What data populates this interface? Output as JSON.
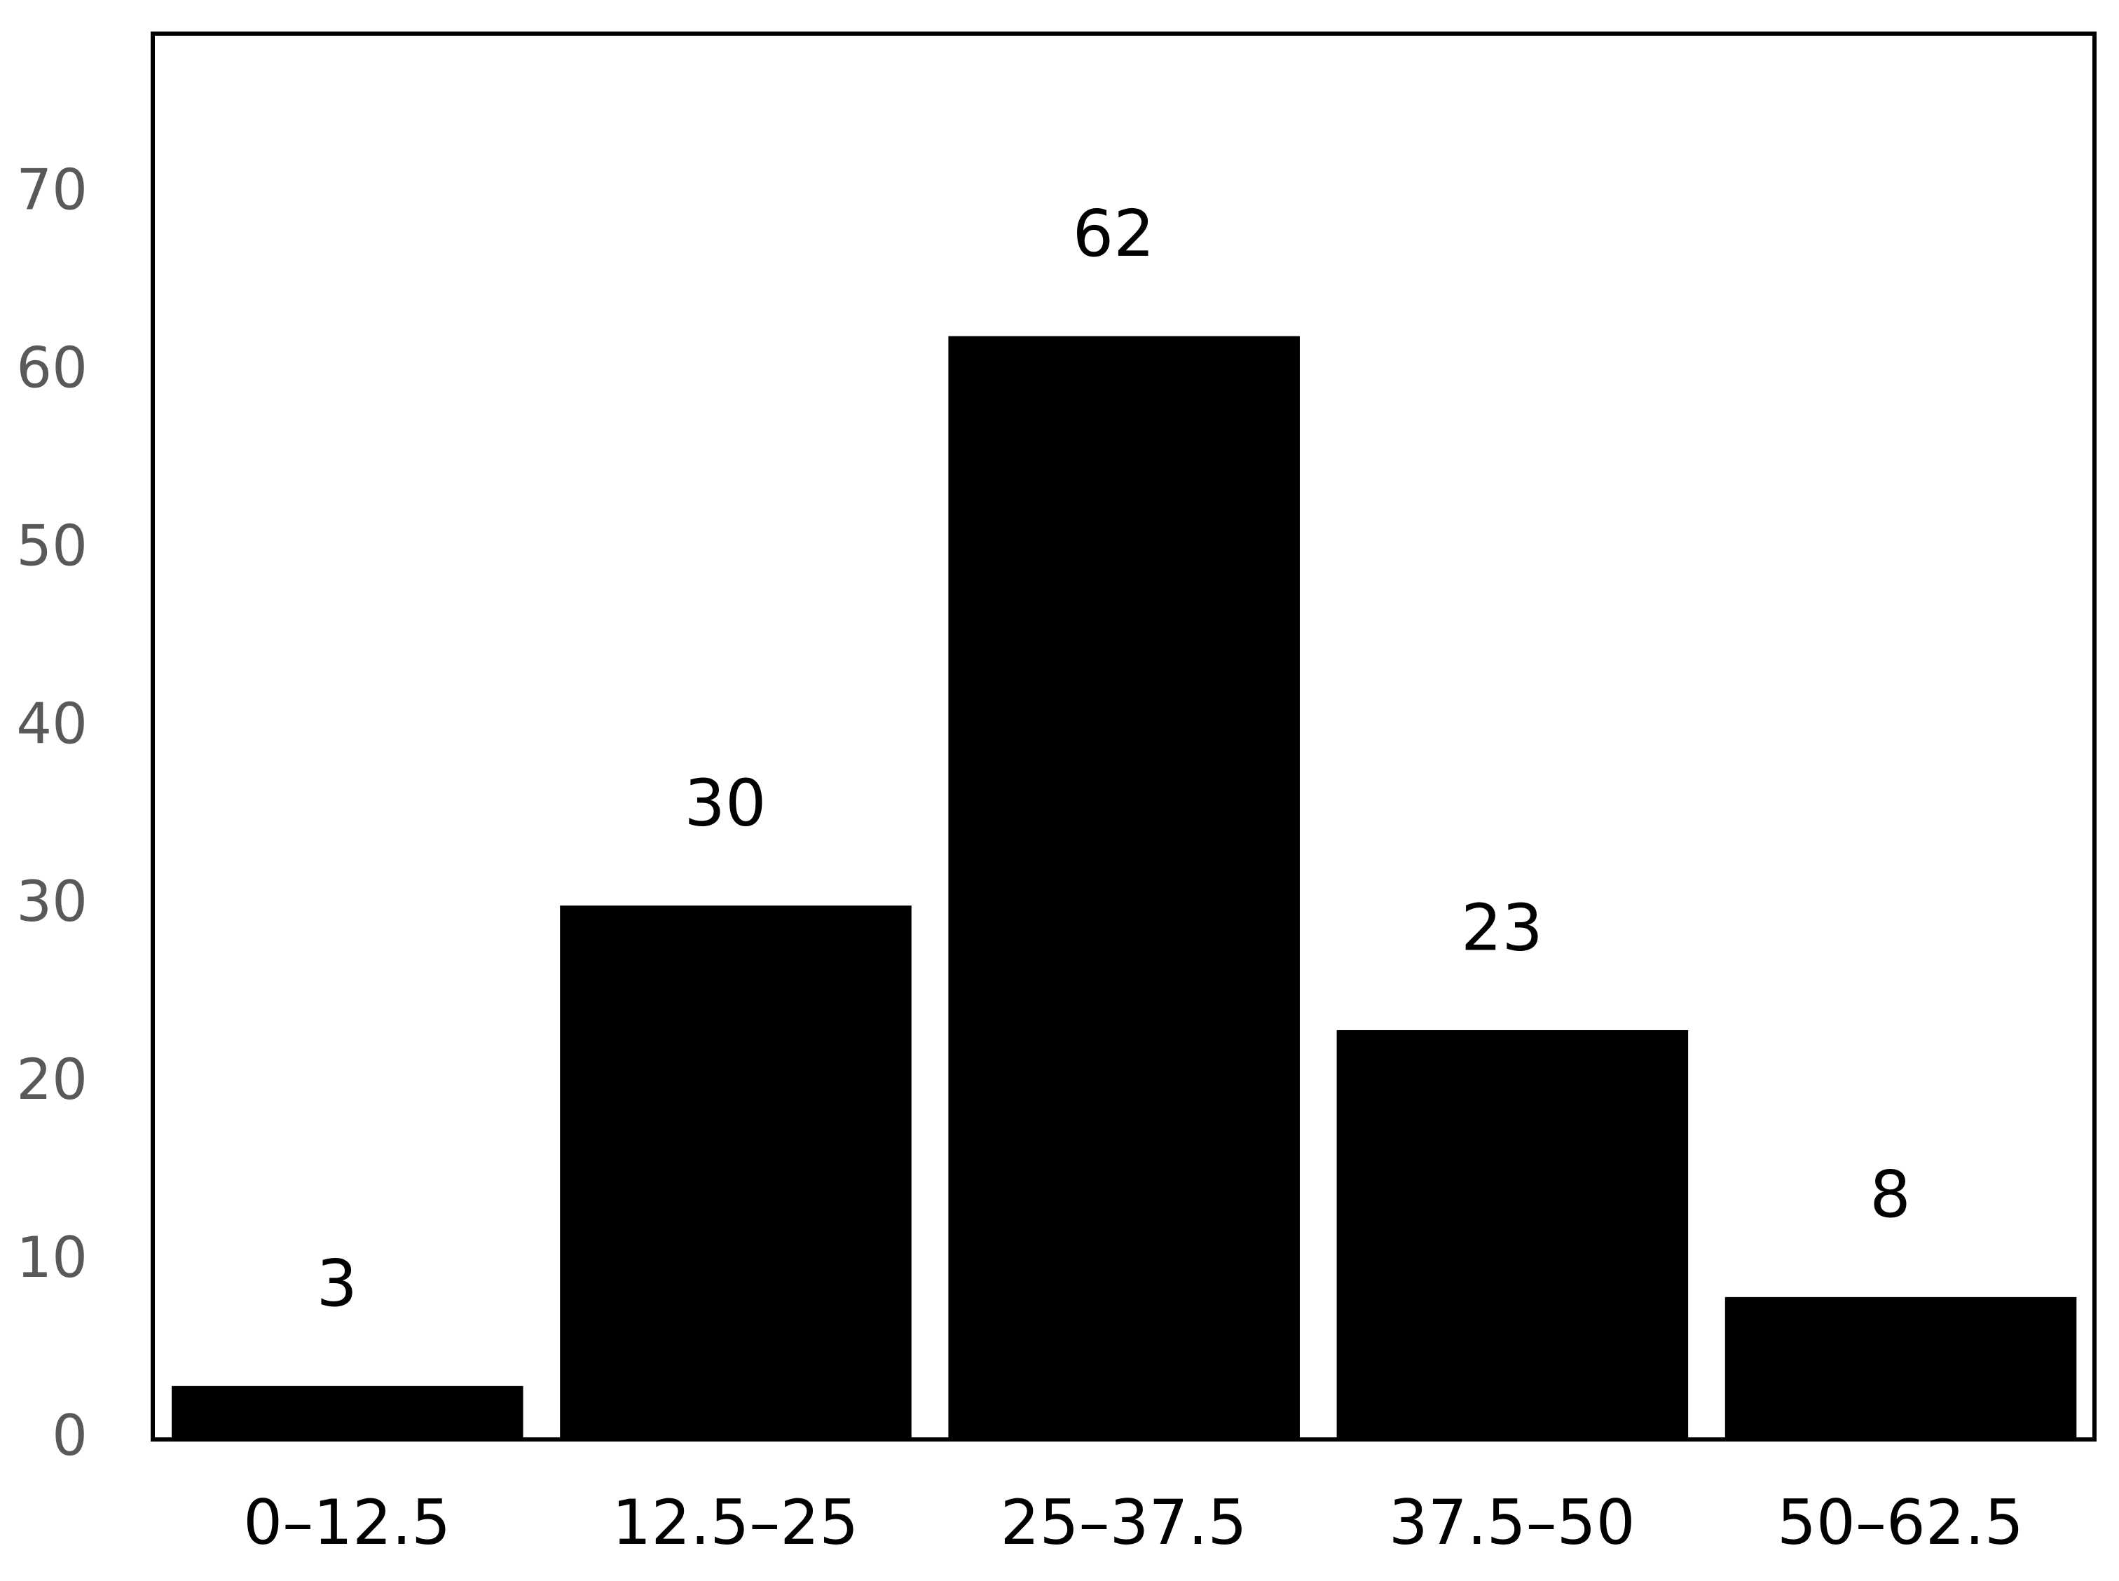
{
  "chart_data": {
    "type": "bar",
    "categories": [
      "0–12.5",
      "12.5–25",
      "25–37.5",
      "37.5–50",
      "50–62.5"
    ],
    "values": [
      3,
      30,
      62,
      23,
      8
    ],
    "color": "#000000",
    "ylim": [
      0,
      79
    ],
    "yticks": [
      0,
      10,
      20,
      30,
      40,
      50,
      60,
      70
    ],
    "grid": false
  }
}
